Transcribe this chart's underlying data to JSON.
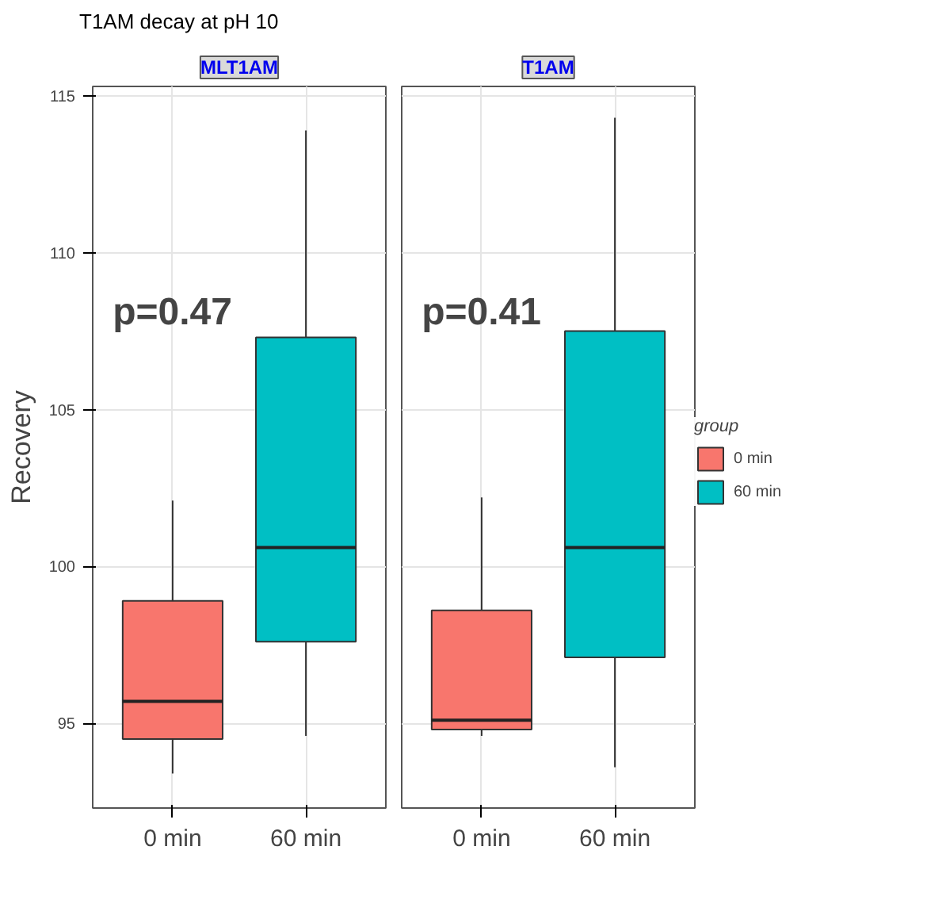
{
  "chart_data": [
    {
      "type": "box",
      "title": "T1AM decay at pH 10",
      "subtitle": "MLT1AM",
      "ylabel": "Recovery",
      "categories": [
        "0 min",
        "60 min"
      ],
      "series": [
        {
          "color": "#f8766d",
          "boxes": [
            {
              "low": 93.4,
              "q1": 94.5,
              "median": 95.7,
              "q3": 98.9,
              "high": 102.1
            },
            null
          ]
        },
        {
          "color": "#00bfc4",
          "boxes": [
            null,
            {
              "low": 94.6,
              "q1": 97.6,
              "median": 100.6,
              "q3": 107.3,
              "high": 113.9
            }
          ]
        }
      ],
      "ylim": [
        92.3,
        115.3
      ],
      "yticks": [
        95,
        100,
        105,
        110,
        115
      ],
      "grid": true,
      "annotations": [
        "p=0.47"
      ]
    },
    {
      "type": "box",
      "subtitle": "T1AM",
      "legend_title": "group",
      "categories": [
        "0 min",
        "60 min"
      ],
      "series": [
        {
          "name": "0 min",
          "color": "#f8766d",
          "boxes": [
            {
              "low": 94.6,
              "q1": 94.8,
              "median": 95.1,
              "q3": 98.6,
              "high": 102.2
            },
            null
          ]
        },
        {
          "name": "60 min",
          "color": "#00bfc4",
          "boxes": [
            null,
            {
              "low": 93.6,
              "q1": 97.1,
              "median": 100.6,
              "q3": 107.5,
              "high": 114.3
            }
          ]
        }
      ],
      "ylim": [
        92.3,
        115.3
      ],
      "yticks": [
        95,
        100,
        105,
        110,
        115
      ],
      "grid": true,
      "legend": "right",
      "tick_labels": "x",
      "annotations": [
        "p=0.41"
      ]
    }
  ]
}
